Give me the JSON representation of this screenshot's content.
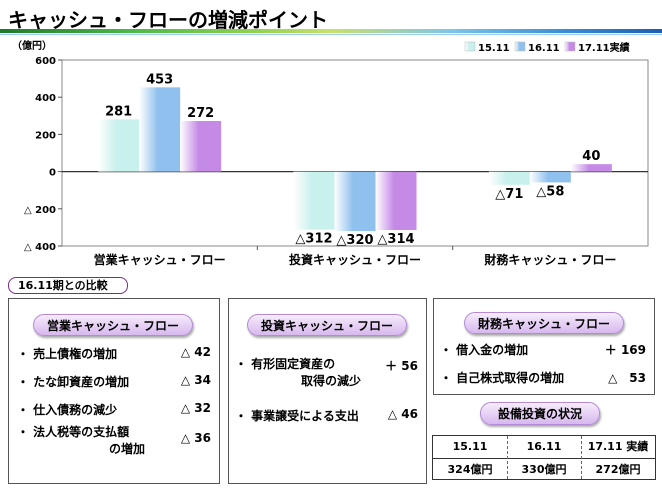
{
  "title": "キャッシュ・フローの増減ポイント",
  "chart_data": {
    "type": "bar",
    "ylabel": "（億円）",
    "ylim": [
      -400,
      600
    ],
    "yticks": [
      600,
      400,
      200,
      0,
      -200,
      -400
    ],
    "ytick_labels": [
      "600",
      "400",
      "200",
      "0",
      "△ 200",
      "△ 400"
    ],
    "categories": [
      "営業キャッシュ・フロー",
      "投資キャッシュ・フロー",
      "財務キャッシュ・フロー"
    ],
    "legend_position": "top-right",
    "grid": false,
    "series": [
      {
        "name": "15.11",
        "color": "#c8f0ec",
        "values": [
          281,
          -312,
          -71
        ],
        "labels": [
          "281",
          "△312",
          "△71"
        ]
      },
      {
        "name": "16.11",
        "color": "#8fc0ee",
        "values": [
          453,
          -320,
          -58
        ],
        "labels": [
          "453",
          "△320",
          "△58"
        ]
      },
      {
        "name": "17.11実績",
        "color": "#c48ae6",
        "values": [
          272,
          -314,
          40
        ],
        "labels": [
          "272",
          "△314",
          "40"
        ]
      }
    ]
  },
  "compare_label": "16.11期との比較",
  "panels": {
    "operating": {
      "title": "営業キャッシュ・フロー",
      "items": [
        {
          "label": "・ 売上債権の増加",
          "value": "△ 42"
        },
        {
          "label": "・ たな卸資産の増加",
          "value": "△ 34"
        },
        {
          "label": "・ 仕入債務の減少",
          "value": "△ 32"
        },
        {
          "label": "・ 法人税等の支払額",
          "label2": "の増加",
          "value": "△ 36"
        }
      ]
    },
    "investing": {
      "title": "投資キャッシュ・フロー",
      "items": [
        {
          "label": "・ 有形固定資産の",
          "label2": "取得の減少",
          "value": "＋ 56"
        },
        {
          "label": "・ 事業譲受による支出",
          "value": "△ 46"
        }
      ]
    },
    "financing": {
      "title": "財務キャッシュ・フロー",
      "items": [
        {
          "label": "・ 借入金の増加",
          "value": "＋ 169"
        },
        {
          "label": "・ 自己株式取得の増加",
          "value": "△　53"
        }
      ]
    }
  },
  "capex": {
    "title": "設備投資の状況",
    "headers": [
      "15.11",
      "16.11",
      "17.11 実績"
    ],
    "values": [
      "324億円",
      "330億円",
      "272億円"
    ]
  }
}
